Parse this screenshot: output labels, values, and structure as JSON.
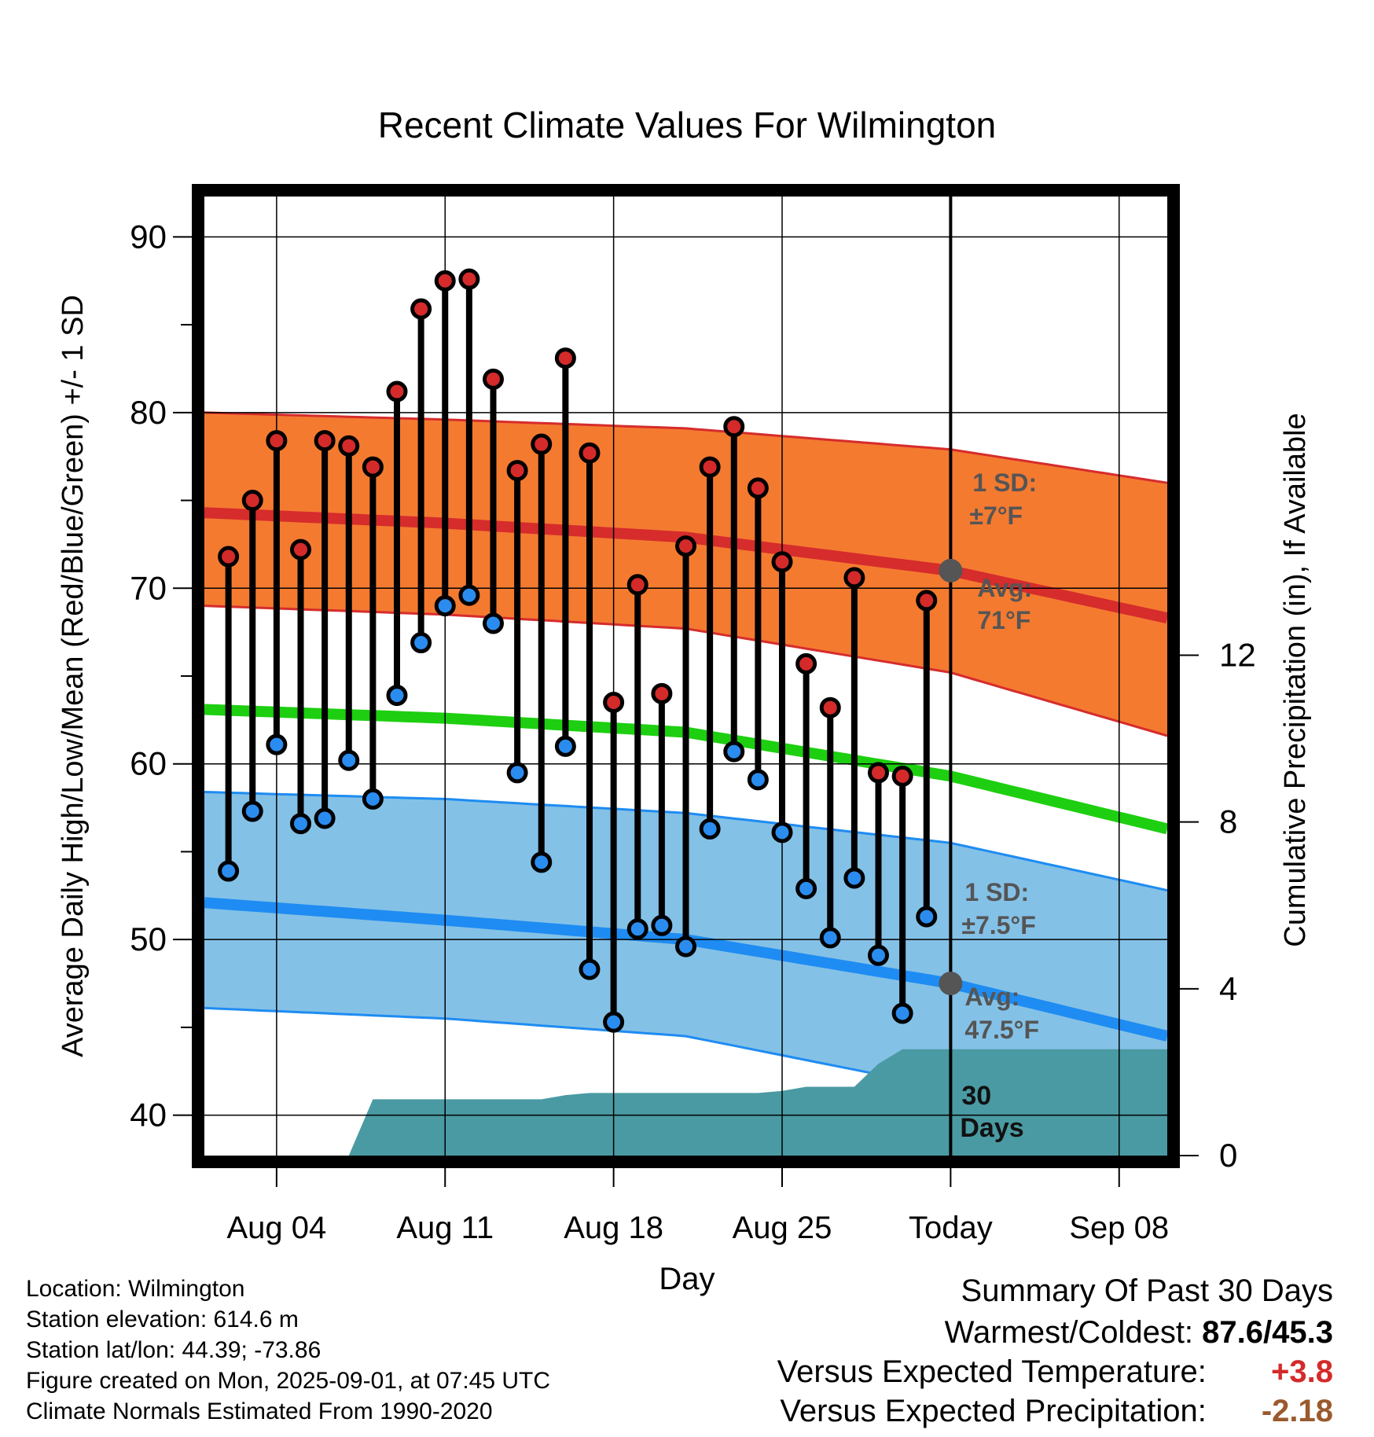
{
  "chart_data": {
    "type": "line",
    "title": "Recent Climate Values For Wilmington",
    "xlabel": "Day",
    "ylabel": "Average Daily High/Low/Mean (Red/Blue/Green) +/- 1 SD",
    "y2label": "Cumulative Precipitation (in), If Available",
    "x_ticks": [
      "Aug 04",
      "Aug 11",
      "Aug 18",
      "Aug 25",
      "Today",
      "Sep 08"
    ],
    "y_ticks": [
      "40",
      "50",
      "60",
      "70",
      "80",
      "90"
    ],
    "y2_ticks": [
      "0",
      "4",
      "8",
      "12"
    ],
    "ylim": [
      37.7,
      92.3
    ],
    "y2lim": [
      0,
      23
    ],
    "xlim_days": [
      "2025-08-01",
      "2025-09-10"
    ],
    "days": [
      "2025-08-02",
      "2025-08-03",
      "2025-08-04",
      "2025-08-05",
      "2025-08-06",
      "2025-08-07",
      "2025-08-08",
      "2025-08-09",
      "2025-08-10",
      "2025-08-11",
      "2025-08-12",
      "2025-08-13",
      "2025-08-14",
      "2025-08-15",
      "2025-08-16",
      "2025-08-17",
      "2025-08-18",
      "2025-08-19",
      "2025-08-20",
      "2025-08-21",
      "2025-08-22",
      "2025-08-23",
      "2025-08-24",
      "2025-08-25",
      "2025-08-26",
      "2025-08-27",
      "2025-08-28",
      "2025-08-29",
      "2025-08-30",
      "2025-08-31"
    ],
    "observed_high": [
      71.8,
      75.0,
      78.4,
      72.2,
      78.4,
      78.1,
      76.9,
      81.2,
      85.9,
      87.5,
      87.6,
      81.9,
      76.7,
      78.2,
      83.1,
      77.7,
      63.5,
      70.2,
      64.0,
      72.4,
      76.9,
      79.2,
      75.7,
      71.5,
      65.7,
      63.2,
      70.6,
      59.5,
      59.3,
      69.3
    ],
    "observed_low": [
      53.9,
      57.3,
      61.1,
      56.6,
      56.9,
      60.2,
      58.0,
      63.9,
      66.9,
      69.0,
      69.6,
      68.0,
      59.5,
      54.4,
      61.0,
      48.3,
      45.3,
      50.6,
      50.8,
      49.6,
      56.3,
      60.7,
      59.1,
      56.1,
      52.9,
      50.1,
      53.5,
      49.1,
      45.8,
      51.3
    ],
    "normals": {
      "days": [
        "2025-08-01",
        "2025-08-11",
        "2025-08-21",
        "2025-09-01",
        "2025-09-10"
      ],
      "high_mean": [
        74.3,
        73.7,
        72.9,
        71.0,
        68.3
      ],
      "high_upper": [
        80.0,
        79.6,
        79.1,
        77.9,
        76.0
      ],
      "high_lower": [
        69.0,
        68.5,
        67.7,
        65.2,
        61.6
      ],
      "mean": [
        63.1,
        62.6,
        61.8,
        59.3,
        56.3
      ],
      "low_mean": [
        52.1,
        51.1,
        50.0,
        47.5,
        44.5
      ],
      "low_upper": [
        58.4,
        58.0,
        57.2,
        55.5,
        52.8
      ],
      "low_lower": [
        46.1,
        45.5,
        44.5,
        41.5,
        37.7
      ]
    },
    "precip": {
      "days": [
        "2025-08-07",
        "2025-08-08",
        "2025-08-15",
        "2025-08-16",
        "2025-08-17",
        "2025-08-24",
        "2025-08-25",
        "2025-08-26",
        "2025-08-28",
        "2025-08-29",
        "2025-08-30",
        "2025-09-10"
      ],
      "cumulative": [
        0.0,
        1.35,
        1.35,
        1.45,
        1.5,
        1.5,
        1.55,
        1.65,
        1.65,
        2.2,
        2.55,
        2.55
      ],
      "label": "30\nDays",
      "color": "#4a9aa3"
    },
    "today": "2025-09-01",
    "annotations": {
      "high_sd": [
        "1 SD:",
        "±7°F"
      ],
      "high_avg": [
        "Avg:",
        "71°F"
      ],
      "low_sd": [
        "1 SD:",
        "±7.5°F"
      ],
      "low_avg": [
        "Avg:",
        "47.5°F"
      ],
      "precip_label": [
        "30",
        "Days"
      ]
    },
    "colors": {
      "high_band": "#f47a30",
      "high_line": "#d62c2c",
      "mean_line": "#1dcf10",
      "low_band": "#84c1e7",
      "low_line": "#1e8cf2",
      "high_dot": "#d42a2a",
      "low_dot": "#2a8cef",
      "annotation": "#555555"
    },
    "grid": true
  },
  "info": {
    "location": "Location: Wilmington",
    "elevation": "Station elevation: 614.6 m",
    "latlon": "Station lat/lon: 44.39; -73.86",
    "created": "Figure created on Mon, 2025-09-01, at 07:45 UTC",
    "normals": "Climate Normals Estimated From 1990-2020"
  },
  "summary": {
    "title": "Summary Of Past 30 Days",
    "warmest_label": "Warmest/Coldest:",
    "warmest_value": "87.6/45.3",
    "temp_label": "Versus Expected Temperature:",
    "temp_value": "+3.8",
    "temp_color": "#d42a2a",
    "precip_label": "Versus Expected Precipitation:",
    "precip_value": "-2.18",
    "precip_color": "#9a5a2e"
  }
}
